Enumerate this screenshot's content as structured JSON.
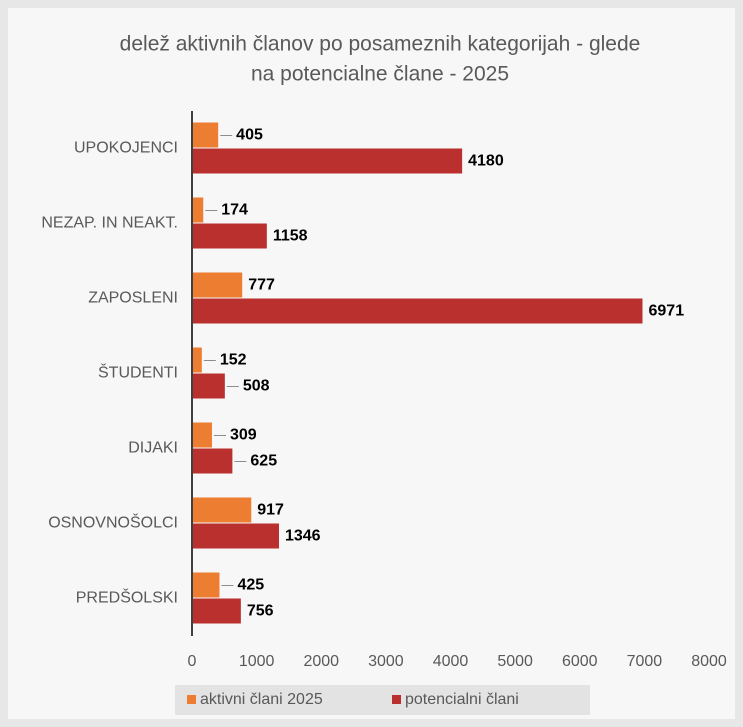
{
  "chart_data": {
    "type": "hbar",
    "title": [
      "delež aktivnih članov po posameznih kategorijah - glede",
      "na potencialne člane - 2025"
    ],
    "categories": [
      "UPOKOJENCI",
      "NEZAP. IN NEAKT.",
      "ZAPOSLENI",
      "ŠTUDENTI",
      "DIJAKI",
      "OSNOVNOŠOLCI",
      "PREDŠOLSKI"
    ],
    "series": [
      {
        "name": "aktivni člani 2025",
        "color": "#ed7d31",
        "values": [
          405,
          174,
          777,
          152,
          309,
          917,
          425
        ]
      },
      {
        "name": "potencialni člani",
        "color": "#b9302f",
        "values": [
          4180,
          1158,
          6971,
          508,
          625,
          1346,
          756
        ]
      }
    ],
    "xlim": [
      0,
      8000
    ],
    "xticks": [
      0,
      1000,
      2000,
      3000,
      4000,
      5000,
      6000,
      7000,
      8000
    ],
    "grid": false,
    "legend": "bottom"
  }
}
